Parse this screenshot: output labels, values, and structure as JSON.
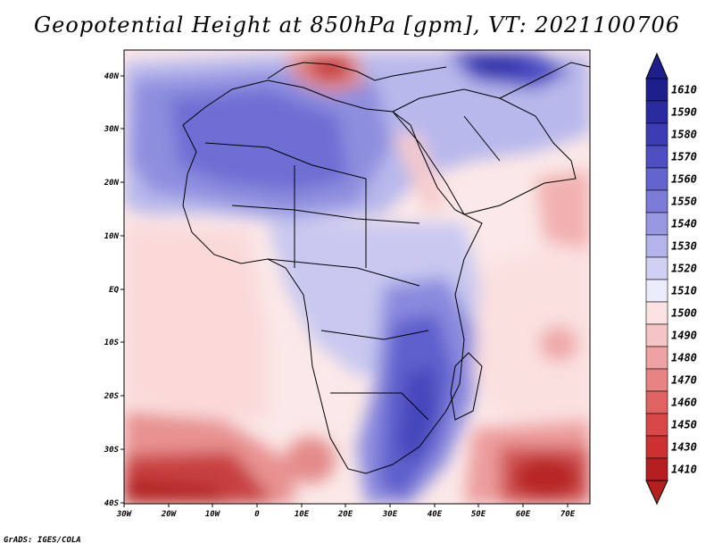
{
  "title": "Geopotential Height at 850hPa [gpm], VT: 2021100706",
  "credit": "GrADS: IGES/COLA",
  "axes": {
    "lon_labels": [
      "30W",
      "20W",
      "10W",
      "0",
      "10E",
      "20E",
      "30E",
      "40E",
      "50E",
      "60E",
      "70E"
    ],
    "lat_labels": [
      "40N",
      "30N",
      "20N",
      "10N",
      "EQ",
      "10S",
      "20S",
      "30S",
      "40S"
    ]
  },
  "colorbar": {
    "levels": [
      "1610",
      "1590",
      "1580",
      "1570",
      "1560",
      "1550",
      "1540",
      "1530",
      "1520",
      "1510",
      "1500",
      "1490",
      "1480",
      "1470",
      "1460",
      "1450",
      "1430",
      "1410"
    ],
    "colors": [
      "#1e1e8c",
      "#2b2ba0",
      "#3c3cb4",
      "#4f4fc3",
      "#6464cf",
      "#7b7bd8",
      "#9797e2",
      "#b4b4eb",
      "#d0d0f3",
      "#ececfa",
      "#fbe3e3",
      "#f5c4c4",
      "#eea3a3",
      "#e88383",
      "#e06464",
      "#d84848",
      "#cc3131",
      "#b51f1f"
    ]
  }
}
